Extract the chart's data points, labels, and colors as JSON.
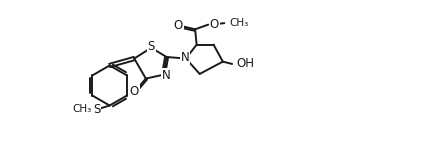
{
  "bg_color": "#ffffff",
  "line_color": "#1a1a1a",
  "line_width": 1.4,
  "font_size": 8.5,
  "figsize": [
    4.25,
    1.67
  ],
  "dpi": 100,
  "xlim": [
    0.0,
    4.25
  ],
  "ylim": [
    0.0,
    1.67
  ]
}
